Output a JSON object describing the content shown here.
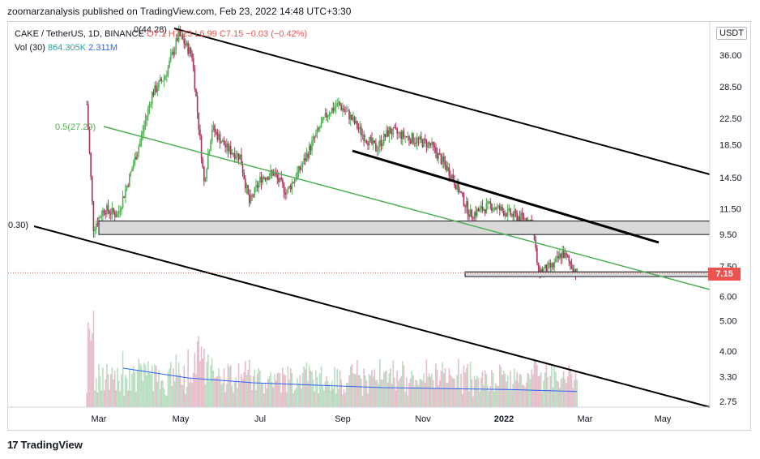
{
  "publisher_line": "zoomarzanalysis published on TradingView.com, Feb 23, 2022 14:48 UTC+3:30",
  "legend": {
    "symbol": "CAKE / TetherUS, 1D, BINANCE",
    "ohlc": "O7.1 H7.23 L6.99 C7.15 −0.03 (−0.42%)",
    "vol_label": "Vol (30)",
    "vol_value": "864.305K",
    "vol_ma": "2.311M"
  },
  "currency_unit": "USDT",
  "last_price": "7.15",
  "footer": {
    "logo": "17",
    "brand": "TradingView"
  },
  "colors": {
    "up": "#26a69a",
    "down": "#ef5350",
    "candle_up": "#4caf50",
    "candle_down": "#a8325e",
    "fib_line": "#4caf50",
    "volume_ma": "#2962ff",
    "zone": "#d9d9d9",
    "price_line": "#ef5350"
  },
  "chart_data": {
    "type": "candlestick",
    "scale": "log",
    "price_ticks": [
      "36.00",
      "28.50",
      "22.50",
      "18.50",
      "14.50",
      "11.50",
      "9.50",
      "7.50",
      "6.00",
      "5.00",
      "4.00",
      "3.30",
      "2.75"
    ],
    "time_ticks": [
      "Mar",
      "May",
      "Jul",
      "Sep",
      "Nov",
      "2022",
      "Mar",
      "May"
    ],
    "annotations": {
      "fib_top": "0(44.28)",
      "fib_mid": "0.5(27.29)",
      "fib_left": "0.30)"
    },
    "series": [
      {
        "date": "2021-02-20",
        "close": 25.0
      },
      {
        "date": "2021-02-25",
        "close": 10.0
      },
      {
        "date": "2021-03-05",
        "close": 11.5
      },
      {
        "date": "2021-03-15",
        "close": 11.0
      },
      {
        "date": "2021-03-25",
        "close": 15.0
      },
      {
        "date": "2021-04-01",
        "close": 19.0
      },
      {
        "date": "2021-04-10",
        "close": 27.0
      },
      {
        "date": "2021-04-20",
        "close": 31.0
      },
      {
        "date": "2021-04-30",
        "close": 42.0
      },
      {
        "date": "2021-05-10",
        "close": 36.0
      },
      {
        "date": "2021-05-19",
        "close": 14.0
      },
      {
        "date": "2021-05-25",
        "close": 21.0
      },
      {
        "date": "2021-06-05",
        "close": 18.0
      },
      {
        "date": "2021-06-15",
        "close": 17.0
      },
      {
        "date": "2021-06-22",
        "close": 12.0
      },
      {
        "date": "2021-07-01",
        "close": 14.5
      },
      {
        "date": "2021-07-10",
        "close": 15.0
      },
      {
        "date": "2021-07-20",
        "close": 13.0
      },
      {
        "date": "2021-08-01",
        "close": 16.0
      },
      {
        "date": "2021-08-10",
        "close": 19.5
      },
      {
        "date": "2021-08-20",
        "close": 23.5
      },
      {
        "date": "2021-08-28",
        "close": 25.0
      },
      {
        "date": "2021-09-05",
        "close": 23.0
      },
      {
        "date": "2021-09-15",
        "close": 20.0
      },
      {
        "date": "2021-09-25",
        "close": 18.0
      },
      {
        "date": "2021-10-05",
        "close": 20.5
      },
      {
        "date": "2021-10-20",
        "close": 19.5
      },
      {
        "date": "2021-11-05",
        "close": 18.5
      },
      {
        "date": "2021-11-20",
        "close": 15.0
      },
      {
        "date": "2021-12-05",
        "close": 11.0
      },
      {
        "date": "2021-12-20",
        "close": 11.8
      },
      {
        "date": "2022-01-05",
        "close": 11.0
      },
      {
        "date": "2022-01-20",
        "close": 10.5
      },
      {
        "date": "2022-01-25",
        "close": 7.2
      },
      {
        "date": "2022-02-05",
        "close": 7.5
      },
      {
        "date": "2022-02-12",
        "close": 8.3
      },
      {
        "date": "2022-02-23",
        "close": 7.15
      }
    ],
    "volume_ma_levels": [
      3.3,
      3.1,
      3.0,
      2.95,
      2.9,
      2.88,
      2.86,
      2.82
    ],
    "zones": [
      {
        "from": "2021-03-01",
        "to": "end",
        "low": 9.5,
        "high": 10.5
      },
      {
        "from": "2021-12-01",
        "to": "end",
        "low": 6.95,
        "high": 7.2
      }
    ]
  }
}
